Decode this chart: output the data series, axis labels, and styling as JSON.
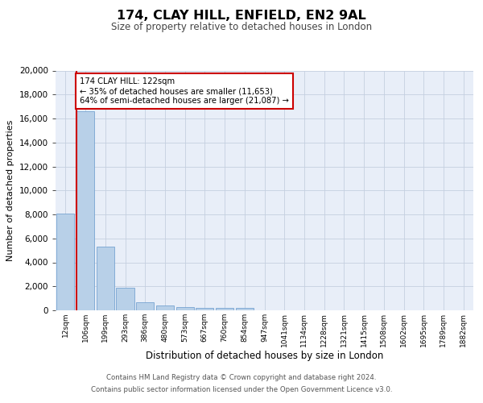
{
  "title": "174, CLAY HILL, ENFIELD, EN2 9AL",
  "subtitle": "Size of property relative to detached houses in London",
  "xlabel": "Distribution of detached houses by size in London",
  "ylabel": "Number of detached properties",
  "categories": [
    "12sqm",
    "106sqm",
    "199sqm",
    "293sqm",
    "386sqm",
    "480sqm",
    "573sqm",
    "667sqm",
    "760sqm",
    "854sqm",
    "947sqm",
    "1041sqm",
    "1134sqm",
    "1228sqm",
    "1321sqm",
    "1415sqm",
    "1508sqm",
    "1602sqm",
    "1695sqm",
    "1789sqm",
    "1882sqm"
  ],
  "values": [
    8100,
    16600,
    5300,
    1850,
    650,
    370,
    290,
    220,
    180,
    210,
    0,
    0,
    0,
    0,
    0,
    0,
    0,
    0,
    0,
    0,
    0
  ],
  "bar_color": "#b8d0e8",
  "bar_edge_color": "#6699cc",
  "annotation_text": "174 CLAY HILL: 122sqm\n← 35% of detached houses are smaller (11,653)\n64% of semi-detached houses are larger (21,087) →",
  "annotation_box_color": "#ffffff",
  "annotation_box_edge": "#cc0000",
  "red_line_color": "#cc0000",
  "ylim": [
    0,
    20000
  ],
  "yticks": [
    0,
    2000,
    4000,
    6000,
    8000,
    10000,
    12000,
    14000,
    16000,
    18000,
    20000
  ],
  "background_color": "#e8eef8",
  "footer_line1": "Contains HM Land Registry data © Crown copyright and database right 2024.",
  "footer_line2": "Contains public sector information licensed under the Open Government Licence v3.0."
}
